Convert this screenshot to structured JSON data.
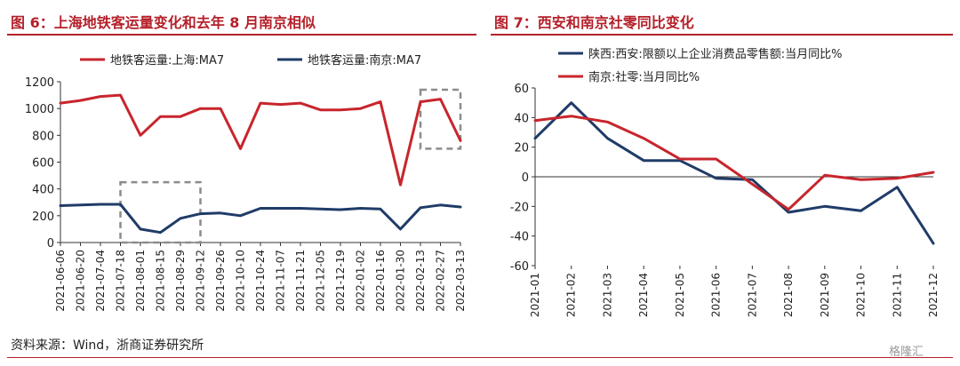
{
  "left_title": "图 6：上海地铁客运量变化和去年 8 月南京相似",
  "right_title": "图 7：西安和南京社零同比变化",
  "source": "资料来源：Wind，浙商证券研究所",
  "watermark": "格隆汇",
  "colors": {
    "red": "#c8252c",
    "navy": "#1f3b68",
    "accent": "#b5202a",
    "box": "#8c8c8c"
  },
  "chart_data": [
    {
      "type": "line",
      "x": [
        "2021-06-06",
        "2021-06-20",
        "2021-07-04",
        "2021-07-18",
        "2021-08-01",
        "2021-08-15",
        "2021-08-29",
        "2021-09-12",
        "2021-09-26",
        "2021-10-10",
        "2021-10-24",
        "2021-11-07",
        "2021-11-21",
        "2021-12-05",
        "2021-12-19",
        "2022-01-02",
        "2022-01-16",
        "2022-01-30",
        "2022-02-13",
        "2022-02-27",
        "2022-03-13"
      ],
      "series": [
        {
          "name": "地铁客运量:上海:MA7",
          "values": [
            1040,
            1060,
            1090,
            1100,
            800,
            940,
            940,
            1000,
            1000,
            700,
            1040,
            1030,
            1040,
            990,
            990,
            1000,
            1050,
            430,
            1050,
            1070,
            760
          ]
        },
        {
          "name": "地铁客运量:南京:MA7",
          "values": [
            275,
            280,
            285,
            285,
            100,
            75,
            180,
            215,
            220,
            200,
            255,
            255,
            255,
            250,
            245,
            255,
            250,
            100,
            260,
            280,
            265
          ]
        }
      ],
      "ylim": [
        0,
        1200
      ],
      "yticks": [
        0,
        200,
        400,
        600,
        800,
        1000,
        1200
      ],
      "highlight_boxes": [
        {
          "x_start": "2021-07-18",
          "x_end": "2021-09-12",
          "y_start": 0,
          "y_end": 450
        },
        {
          "x_start": "2022-02-13",
          "x_end": "2022-03-13",
          "y_start": 700,
          "y_end": 1140
        }
      ],
      "legend": "top"
    },
    {
      "type": "line",
      "categories": [
        "2021-01",
        "2021-02",
        "2021-03",
        "2021-04",
        "2021-05",
        "2021-06",
        "2021-07",
        "2021-08",
        "2021-09",
        "2021-10",
        "2021-11",
        "2021-12"
      ],
      "series": [
        {
          "name": "陕西:西安:限额以上企业消费品零售额:当月同比%",
          "values": [
            26,
            50,
            26,
            11,
            11,
            -1,
            -2,
            -24,
            -20,
            -23,
            -7,
            -45
          ]
        },
        {
          "name": "南京:社零:当月同比%",
          "values": [
            38,
            41,
            37,
            26,
            12,
            12,
            -5,
            -22,
            1,
            -2,
            -1,
            3
          ]
        }
      ],
      "ylim": [
        -60,
        60
      ],
      "yticks": [
        -60,
        -40,
        -20,
        0,
        20,
        40,
        60
      ],
      "legend": "top"
    }
  ]
}
